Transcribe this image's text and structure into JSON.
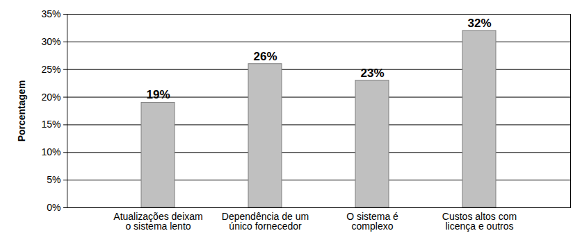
{
  "chart_data": {
    "type": "bar",
    "categories": [
      "Atualizações deixam\no sistema lento",
      "Dependência de um\núnico fornecedor",
      "O sistema é\ncomplexo",
      "Custos altos com\nlicença e outros"
    ],
    "values": [
      19,
      26,
      23,
      32
    ],
    "value_labels": [
      "19%",
      "26%",
      "23%",
      "32%"
    ],
    "data_labels": true,
    "color": "#c0c0c0",
    "y_label": "Porcentagem",
    "ylim": [
      0,
      35
    ],
    "yticks": [
      {
        "value": 0,
        "label": "0%"
      },
      {
        "value": 5,
        "label": "5%"
      },
      {
        "value": 10,
        "label": "10%"
      },
      {
        "value": 15,
        "label": "15%"
      },
      {
        "value": 20,
        "label": "20%"
      },
      {
        "value": 25,
        "label": "25%"
      },
      {
        "value": 30,
        "label": "30%"
      },
      {
        "value": 35,
        "label": "35%"
      }
    ],
    "grid": true
  }
}
